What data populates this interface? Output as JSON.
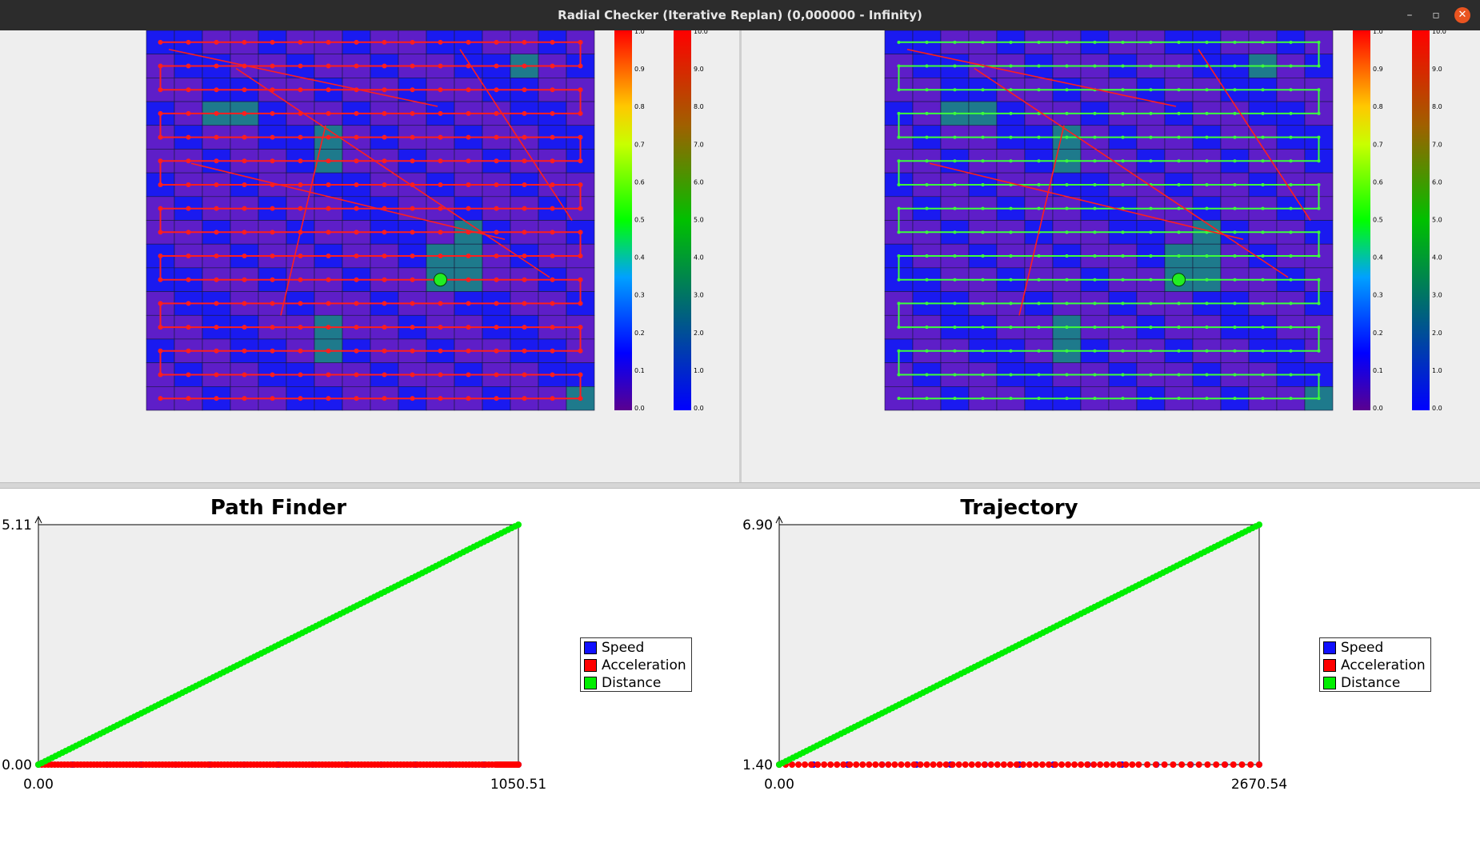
{
  "window": {
    "title": "Radial Checker (Iterative Replan) (0,000000 - Infinity)",
    "minimize_glyph": "–",
    "maximize_glyph": "▫",
    "close_glyph": "✕"
  },
  "colors": {
    "grid_purple": "#5e1ec8",
    "grid_blue": "#1a1af0",
    "grid_teal": "#1e7a8c",
    "path_red": "#ff1e1e",
    "traj_green": "#3cff3c",
    "marker_green": "#22ee22",
    "plot_bg": "#eeeeee"
  },
  "colorbars": {
    "probability_ticks": [
      "1.0",
      "0.9",
      "0.8",
      "0.7",
      "0.6",
      "0.5",
      "0.4",
      "0.3",
      "0.2",
      "0.1",
      "0.0"
    ],
    "speed_ticks": [
      "10.0",
      "9.0",
      "8.0",
      "7.0",
      "6.0",
      "5.0",
      "4.0",
      "3.0",
      "2.0",
      "1.0",
      "0.0"
    ]
  },
  "legend": {
    "items": [
      {
        "label": "Speed",
        "color": "#1010ff"
      },
      {
        "label": "Acceleration",
        "color": "#ff0000"
      },
      {
        "label": "Distance",
        "color": "#00ee00"
      }
    ]
  },
  "chart_data": [
    {
      "type": "scatter",
      "title": "Path Finder",
      "xlabel": "",
      "ylabel": "",
      "x_ticks": [
        "0.00",
        "1050.51"
      ],
      "y_ticks": [
        "0.00",
        "5.11"
      ],
      "xlim": [
        0,
        1050.51
      ],
      "ylim": [
        0,
        5.11
      ],
      "grid": false,
      "legend_position": "right",
      "series": [
        {
          "name": "Speed",
          "color": "#1010ff",
          "points": [
            [
              0,
              0
            ],
            [
              1050.51,
              0
            ]
          ]
        },
        {
          "name": "Acceleration",
          "color": "#ff0000",
          "points": [
            [
              0,
              0
            ],
            [
              100,
              0
            ],
            [
              200,
              0
            ],
            [
              300,
              0
            ],
            [
              400,
              0
            ],
            [
              500,
              0
            ],
            [
              600,
              0
            ],
            [
              700,
              0
            ],
            [
              800,
              0
            ],
            [
              900,
              0
            ],
            [
              1000,
              0
            ],
            [
              1050.51,
              0
            ]
          ]
        },
        {
          "name": "Distance",
          "color": "#00ee00",
          "points": [
            [
              0,
              0
            ],
            [
              105,
              0.51
            ],
            [
              210,
              1.02
            ],
            [
              315,
              1.53
            ],
            [
              420,
              2.04
            ],
            [
              525,
              2.55
            ],
            [
              630,
              3.06
            ],
            [
              735,
              3.57
            ],
            [
              840,
              4.08
            ],
            [
              945,
              4.6
            ],
            [
              1050.51,
              5.11
            ]
          ]
        }
      ]
    },
    {
      "type": "scatter",
      "title": "Trajectory",
      "xlabel": "",
      "ylabel": "",
      "x_ticks": [
        "0.00",
        "2670.54"
      ],
      "y_ticks": [
        "1.40",
        "6.90"
      ],
      "xlim": [
        0,
        2670.54
      ],
      "ylim": [
        1.4,
        6.9
      ],
      "grid": false,
      "legend_position": "right",
      "series": [
        {
          "name": "Speed",
          "color": "#1010ff",
          "points": [
            [
              0,
              1.4
            ],
            [
              2670.54,
              1.4
            ]
          ]
        },
        {
          "name": "Acceleration",
          "color": "#ff0000",
          "points": [
            [
              0,
              1.4
            ],
            [
              500,
              1.4
            ],
            [
              1000,
              1.4
            ],
            [
              1500,
              1.4
            ],
            [
              2000,
              1.4
            ],
            [
              2670.54,
              1.4
            ]
          ]
        },
        {
          "name": "Distance",
          "color": "#00ee00",
          "points": [
            [
              0,
              1.4
            ],
            [
              267,
              1.95
            ],
            [
              534,
              2.5
            ],
            [
              801,
              3.05
            ],
            [
              1068,
              3.6
            ],
            [
              1335,
              4.15
            ],
            [
              1602,
              4.7
            ],
            [
              1869,
              5.25
            ],
            [
              2136,
              5.8
            ],
            [
              2403,
              6.35
            ],
            [
              2670.54,
              6.9
            ]
          ]
        }
      ]
    }
  ]
}
